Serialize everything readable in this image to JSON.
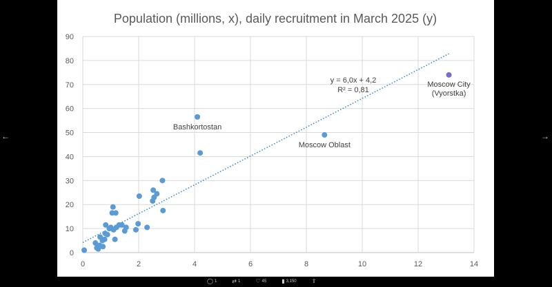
{
  "viewer": {
    "nav_prev_icon": "arrow-left-icon",
    "nav_next_icon": "arrow-right-icon",
    "actions": [
      {
        "name": "reply",
        "icon": "comment-icon",
        "glyph": "◯",
        "count": "1"
      },
      {
        "name": "repost",
        "icon": "repost-icon",
        "glyph": "⇄",
        "count": "1"
      },
      {
        "name": "like",
        "icon": "heart-icon",
        "glyph": "♡",
        "count": "45"
      },
      {
        "name": "views",
        "icon": "bar-chart-icon",
        "glyph": "▮",
        "count": "3,150"
      },
      {
        "name": "share",
        "icon": "share-icon",
        "glyph": "⇪",
        "count": ""
      }
    ]
  },
  "chart_data": {
    "type": "scatter",
    "title": "Population (millions, x), daily recruitment in March 2025 (y)",
    "xlabel": "",
    "ylabel": "",
    "xlim": [
      0,
      14
    ],
    "ylim": [
      0,
      90
    ],
    "x_ticks": [
      "0",
      "2",
      "4",
      "6",
      "8",
      "10",
      "12",
      "14"
    ],
    "y_ticks": [
      "0",
      "10",
      "20",
      "30",
      "40",
      "50",
      "60",
      "70",
      "80",
      "90"
    ],
    "grid": true,
    "point_color": "#5b9bd5",
    "highlight_color": "#7e6bc9",
    "trendline": {
      "equation": "y = 6,0x + 4,2",
      "r2": "R² = 0,81",
      "slope": 6.0,
      "intercept": 4.2,
      "x_range": [
        0,
        13.1
      ],
      "color": "#2e86c1"
    },
    "annotations": [
      {
        "text": "Bashkortostan",
        "x": 4.1,
        "y": 56.5
      },
      {
        "text": "Moscow Oblast",
        "x": 8.65,
        "y": 49
      },
      {
        "text": "Moscow City",
        "x": 13.1,
        "y": 74
      },
      {
        "text": "(Vyorstka)",
        "x": 13.1,
        "y": 74
      }
    ],
    "points": [
      {
        "x": 0.05,
        "y": 1
      },
      {
        "x": 0.45,
        "y": 4
      },
      {
        "x": 0.5,
        "y": 2
      },
      {
        "x": 0.55,
        "y": 1.5
      },
      {
        "x": 0.6,
        "y": 3
      },
      {
        "x": 0.62,
        "y": 6.5
      },
      {
        "x": 0.7,
        "y": 5
      },
      {
        "x": 0.72,
        "y": 2.5
      },
      {
        "x": 0.78,
        "y": 5.5
      },
      {
        "x": 0.8,
        "y": 8
      },
      {
        "x": 0.82,
        "y": 11.5
      },
      {
        "x": 0.88,
        "y": 7.5
      },
      {
        "x": 0.95,
        "y": 10
      },
      {
        "x": 1.0,
        "y": 10.5
      },
      {
        "x": 1.05,
        "y": 16.5
      },
      {
        "x": 1.08,
        "y": 19
      },
      {
        "x": 1.1,
        "y": 9.5
      },
      {
        "x": 1.15,
        "y": 5.5
      },
      {
        "x": 1.18,
        "y": 16.5
      },
      {
        "x": 1.2,
        "y": 10.5
      },
      {
        "x": 1.3,
        "y": 11.5
      },
      {
        "x": 1.4,
        "y": 11.5
      },
      {
        "x": 1.5,
        "y": 9
      },
      {
        "x": 1.55,
        "y": 10.5
      },
      {
        "x": 1.9,
        "y": 9.5
      },
      {
        "x": 1.98,
        "y": 12
      },
      {
        "x": 2.02,
        "y": 23.5
      },
      {
        "x": 2.3,
        "y": 10.5
      },
      {
        "x": 2.5,
        "y": 21.5
      },
      {
        "x": 2.52,
        "y": 26
      },
      {
        "x": 2.55,
        "y": 23
      },
      {
        "x": 2.65,
        "y": 24.5
      },
      {
        "x": 2.85,
        "y": 30
      },
      {
        "x": 2.87,
        "y": 17.5
      },
      {
        "x": 4.1,
        "y": 56.5
      },
      {
        "x": 4.2,
        "y": 41.5
      },
      {
        "x": 8.65,
        "y": 49
      },
      {
        "x": 13.1,
        "y": 74,
        "highlight": true
      }
    ]
  }
}
